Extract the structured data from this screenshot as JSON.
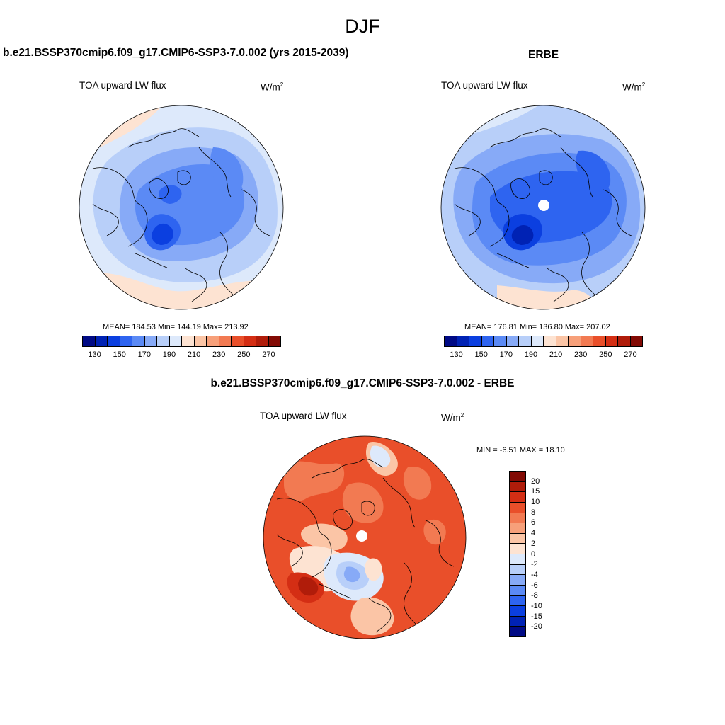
{
  "season": "DJF",
  "colors": {
    "abs_scale": [
      "#000a85",
      "#0022b4",
      "#0b3fe0",
      "#2e64f0",
      "#5b8af5",
      "#87aaf7",
      "#b8cff9",
      "#dde9fb",
      "#fde3d2",
      "#fbc5a6",
      "#f7a07a",
      "#f27a52",
      "#e94f2a",
      "#d42e14",
      "#b01c0a",
      "#820a04"
    ],
    "diff_scale": [
      "#000a85",
      "#0022b4",
      "#0b3fe0",
      "#2e64f0",
      "#5b8af5",
      "#87aaf7",
      "#b8cff9",
      "#dde9fb",
      "#fde3d2",
      "#fbc5a6",
      "#f7a07a",
      "#f27a52",
      "#e94f2a",
      "#d42e14",
      "#b01c0a",
      "#820a04"
    ],
    "coast": "#000000"
  },
  "panels": {
    "model": {
      "title": "b.e21.BSSP370cmip6.f09_g17.CMIP6-SSP3-7.0.002 (yrs 2015-2039)",
      "field": "TOA upward LW flux",
      "units": "W/m",
      "units_exp": "2",
      "stats": "MEAN= 184.53  Min= 144.19  Max= 213.92",
      "ticks": [
        "130",
        "150",
        "170",
        "190",
        "210",
        "230",
        "250",
        "270"
      ]
    },
    "obs": {
      "title": "ERBE",
      "field": "TOA upward LW flux",
      "units": "W/m",
      "units_exp": "2",
      "stats": "MEAN= 176.81  Min= 136.80  Max= 207.02",
      "ticks": [
        "130",
        "150",
        "170",
        "190",
        "210",
        "230",
        "250",
        "270"
      ]
    },
    "diff": {
      "title": "b.e21.BSSP370cmip6.f09_g17.CMIP6-SSP3-7.0.002 - ERBE",
      "field": "TOA upward LW flux",
      "units": "W/m",
      "units_exp": "2",
      "stats": "MIN =  -6.51 MAX =  18.10",
      "ticks": [
        "20",
        "15",
        "10",
        "8",
        "6",
        "4",
        "2",
        "0",
        "-2",
        "-4",
        "-6",
        "-8",
        "-10",
        "-15",
        "-20"
      ]
    }
  }
}
